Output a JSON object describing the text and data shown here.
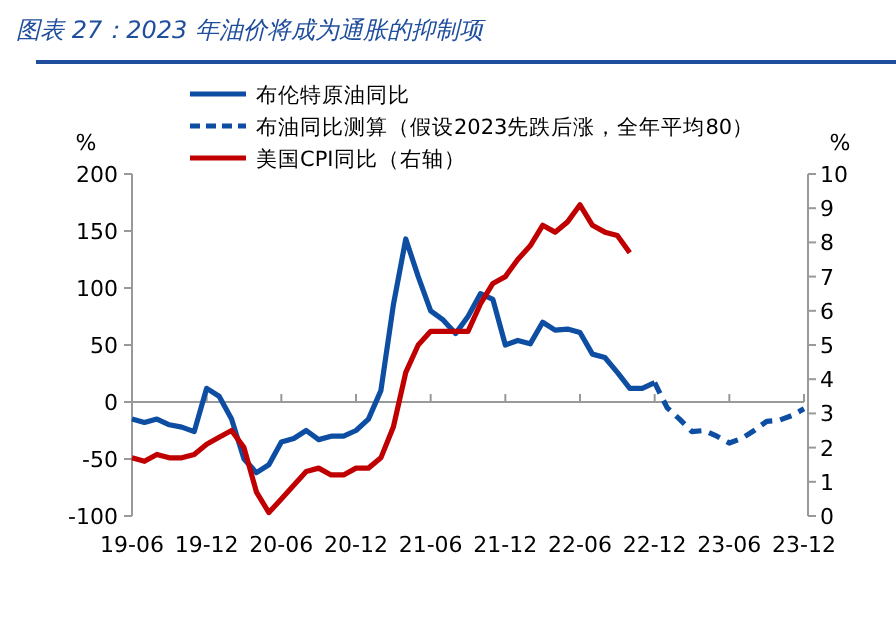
{
  "chart_data": {
    "type": "line",
    "title": "图表 27：2023 年油价将成为通胀的抑制项",
    "ylabel": "%",
    "y2label": "%",
    "legend": "top",
    "xlim": [
      "2019-06",
      "2023-12"
    ],
    "xticks": [
      {
        "value": "2019-06",
        "label": "19-06"
      },
      {
        "value": "2019-12",
        "label": "19-12"
      },
      {
        "value": "2020-06",
        "label": "20-06"
      },
      {
        "value": "2020-12",
        "label": "20-12"
      },
      {
        "value": "2021-06",
        "label": "21-06"
      },
      {
        "value": "2021-12",
        "label": "21-12"
      },
      {
        "value": "2022-06",
        "label": "22-06"
      },
      {
        "value": "2022-12",
        "label": "22-12"
      },
      {
        "value": "2023-06",
        "label": "23-06"
      },
      {
        "value": "2023-12",
        "label": "23-12"
      }
    ],
    "ylim": [
      -100,
      200
    ],
    "yticks": [
      -100,
      -50,
      0,
      50,
      100,
      150,
      200
    ],
    "y2lim": [
      0,
      10
    ],
    "y2ticks": [
      0,
      1,
      2,
      3,
      4,
      5,
      6,
      7,
      8,
      9,
      10
    ],
    "series": [
      {
        "name": "布伦特原油同比",
        "color": "#0d4ea3",
        "line_style": "solid",
        "x": [
          "2019-06",
          "2019-07",
          "2019-08",
          "2019-09",
          "2019-10",
          "2019-11",
          "2019-12",
          "2020-01",
          "2020-02",
          "2020-03",
          "2020-04",
          "2020-05",
          "2020-06",
          "2020-07",
          "2020-08",
          "2020-09",
          "2020-10",
          "2020-11",
          "2020-12",
          "2021-01",
          "2021-02",
          "2021-03",
          "2021-04",
          "2021-05",
          "2021-06",
          "2021-07",
          "2021-08",
          "2021-09",
          "2021-10",
          "2021-11",
          "2021-12",
          "2022-01",
          "2022-02",
          "2022-03",
          "2022-04",
          "2022-05",
          "2022-06",
          "2022-07",
          "2022-08",
          "2022-09",
          "2022-10",
          "2022-11",
          "2022-12"
        ],
        "values": [
          -15,
          -18,
          -15,
          -20,
          -22,
          -26,
          12,
          5,
          -15,
          -50,
          -62,
          -55,
          -35,
          -32,
          -25,
          -33,
          -30,
          -30,
          -25,
          -15,
          10,
          85,
          143,
          110,
          80,
          72,
          60,
          75,
          95,
          90,
          50,
          54,
          51,
          70,
          63,
          64,
          61,
          42,
          39,
          26,
          12,
          12,
          17
        ]
      },
      {
        "name": "布油同比测算（假设2023先跌后涨，全年平均80）",
        "color": "#0d4ea3",
        "line_style": "dashed",
        "x": [
          "2022-12",
          "2023-01",
          "2023-02",
          "2023-03",
          "2023-04",
          "2023-05",
          "2023-06",
          "2023-07",
          "2023-08",
          "2023-09",
          "2023-10",
          "2023-11",
          "2023-12"
        ],
        "values": [
          17,
          -5,
          -15,
          -26,
          -25,
          -30,
          -36,
          -32,
          -25,
          -17,
          -16,
          -12,
          -6
        ]
      },
      {
        "name": "美国CPI同比（右轴）",
        "color": "#c00000",
        "line_style": "solid",
        "axis": "y2",
        "x": [
          "2019-06",
          "2019-07",
          "2019-08",
          "2019-09",
          "2019-10",
          "2019-11",
          "2019-12",
          "2020-01",
          "2020-02",
          "2020-03",
          "2020-04",
          "2020-05",
          "2020-06",
          "2020-07",
          "2020-08",
          "2020-09",
          "2020-10",
          "2020-11",
          "2020-12",
          "2021-01",
          "2021-02",
          "2021-03",
          "2021-04",
          "2021-05",
          "2021-06",
          "2021-07",
          "2021-08",
          "2021-09",
          "2021-10",
          "2021-11",
          "2021-12",
          "2022-01",
          "2022-02",
          "2022-03",
          "2022-04",
          "2022-05",
          "2022-06",
          "2022-07",
          "2022-08",
          "2022-09",
          "2022-10"
        ],
        "values": [
          1.7,
          1.6,
          1.8,
          1.7,
          1.7,
          1.8,
          2.1,
          2.3,
          2.5,
          2.0,
          0.7,
          0.1,
          0.5,
          0.9,
          1.3,
          1.4,
          1.2,
          1.2,
          1.4,
          1.4,
          1.7,
          2.6,
          4.2,
          5.0,
          5.4,
          5.4,
          5.4,
          5.4,
          6.2,
          6.8,
          7.0,
          7.5,
          7.9,
          8.5,
          8.3,
          8.6,
          9.1,
          8.5,
          8.3,
          8.2,
          7.7
        ]
      }
    ]
  }
}
